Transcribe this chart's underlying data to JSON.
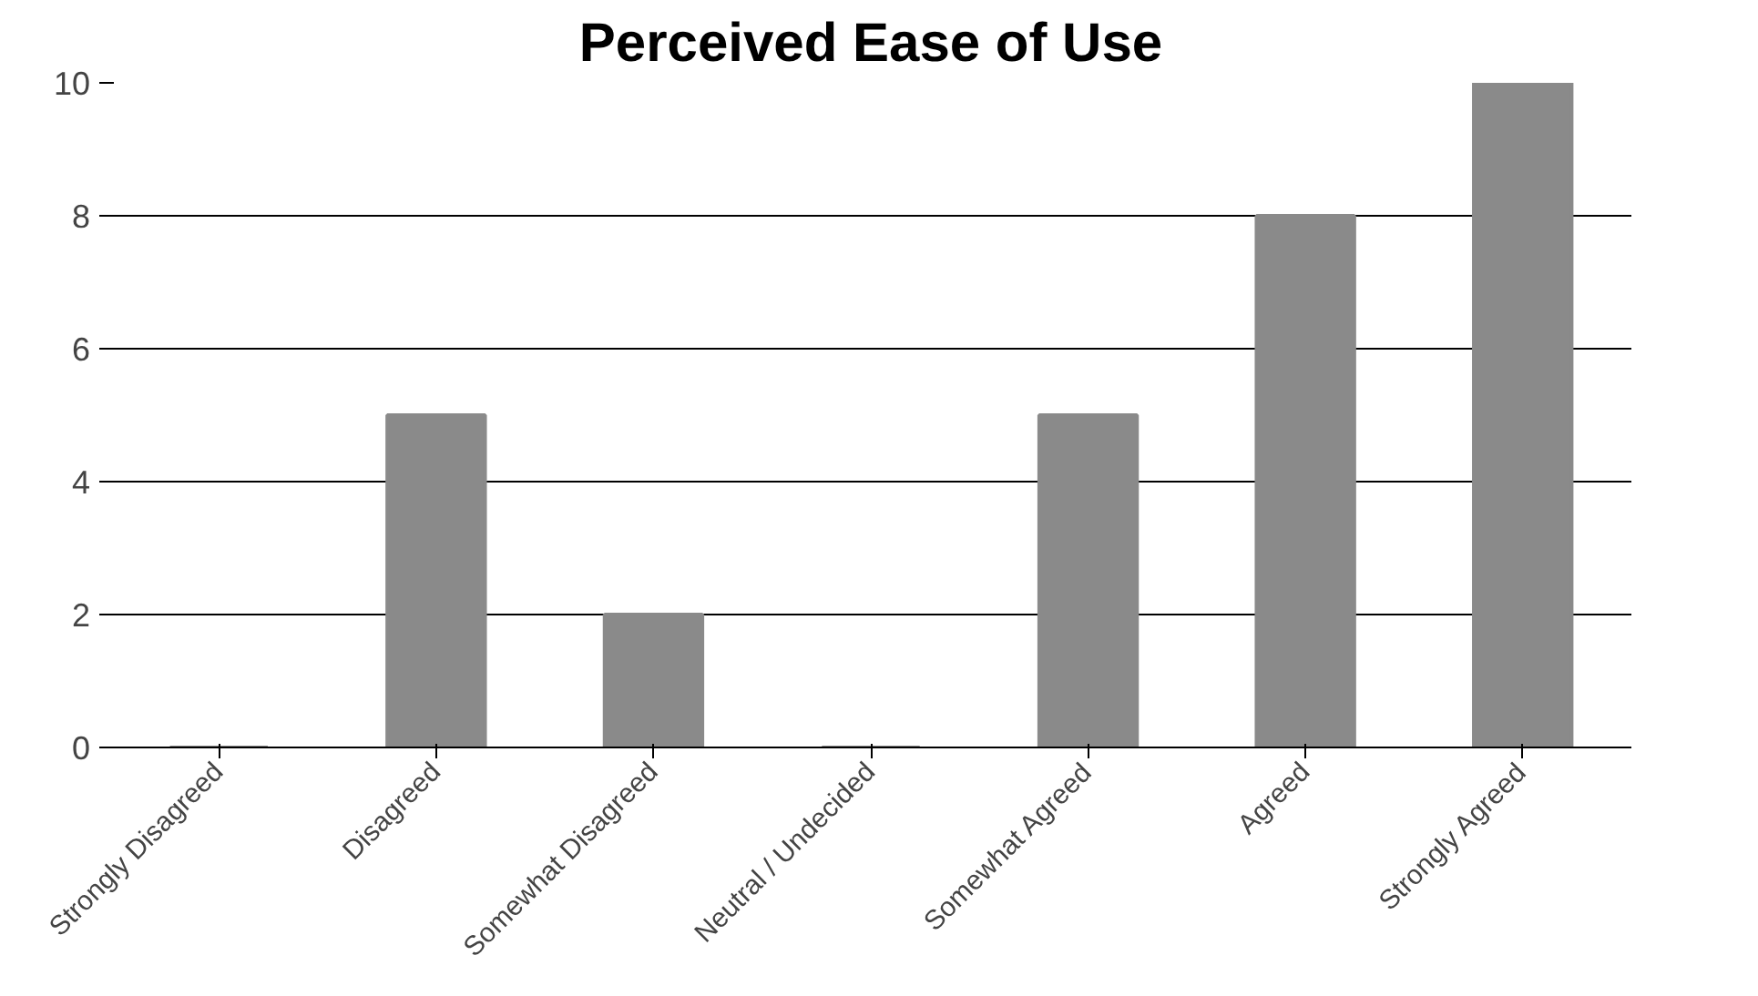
{
  "chart_data": {
    "type": "bar",
    "title": "Perceived Ease of Use",
    "categories": [
      "Strongly Disagreed",
      "Disagreed",
      "Somewhat Disagreed",
      "Neutral / Undecided",
      "Somewhat Agreed",
      "Agreed",
      "Strongly Agreed"
    ],
    "values": [
      0,
      5,
      2,
      0,
      5,
      8,
      10
    ],
    "color": "#8a8a8a",
    "ylim": [
      0,
      10
    ],
    "yticks": [
      0,
      2,
      4,
      6,
      8,
      10
    ],
    "grid": "y"
  }
}
